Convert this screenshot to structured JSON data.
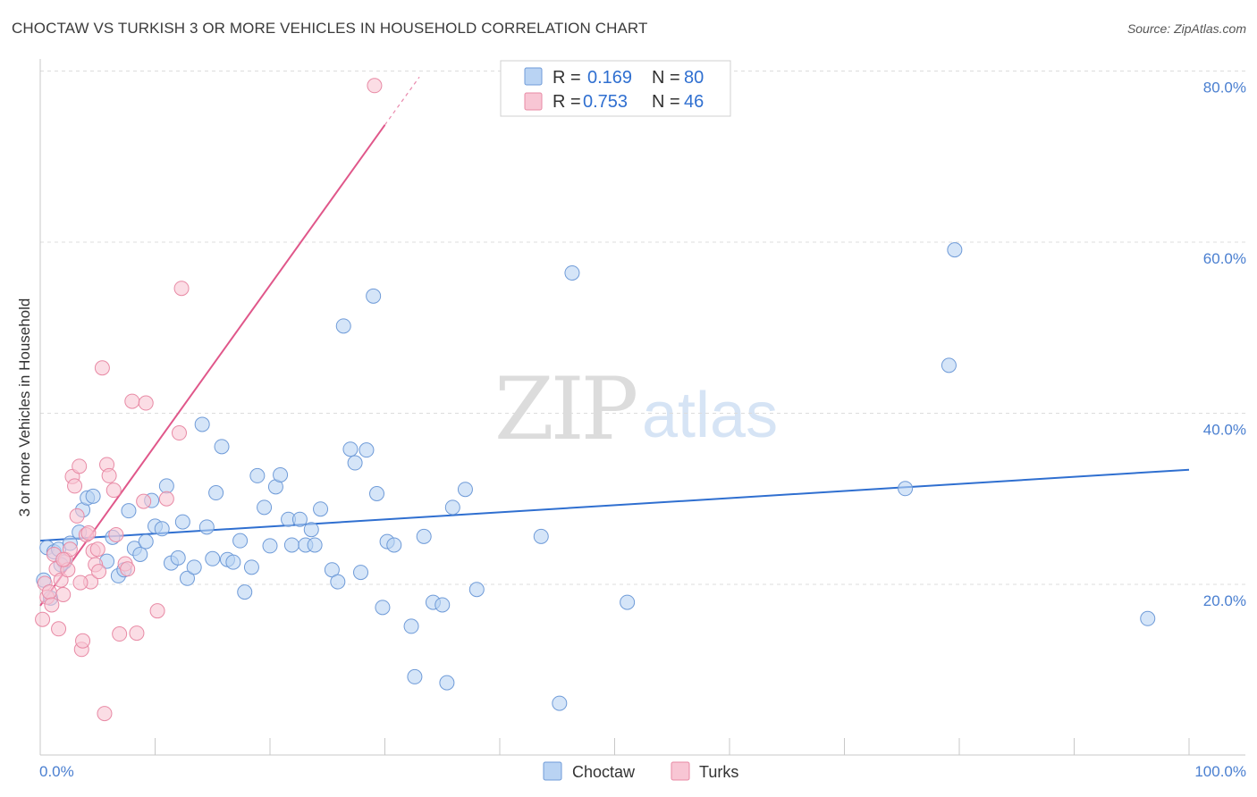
{
  "title": "CHOCTAW VS TURKISH 3 OR MORE VEHICLES IN HOUSEHOLD CORRELATION CHART",
  "source": "Source: ZipAtlas.com",
  "watermark": {
    "zip": "ZIP",
    "atlas": "atlas"
  },
  "colors": {
    "choctaw_fill": "#b9d3f3",
    "choctaw_stroke": "#6f9bd8",
    "choctaw_line": "#2f6fd0",
    "turks_fill": "#f8c6d4",
    "turks_stroke": "#e88aa5",
    "turks_line": "#e0578a",
    "grid": "#dcdcdc",
    "tick_text": "#4a7fd0"
  },
  "legend": {
    "rows": [
      {
        "r_label": "R =",
        "r_value": "0.169",
        "n_label": "N =",
        "n_value": "80"
      },
      {
        "r_label": "R =",
        "r_value": "0.753",
        "n_label": "N =",
        "n_value": "46"
      }
    ]
  },
  "bottom_legend": [
    "Choctaw",
    "Turks"
  ],
  "chart_data": {
    "type": "scatter",
    "title": "CHOCTAW VS TURKISH 3 OR MORE VEHICLES IN HOUSEHOLD CORRELATION CHART",
    "xlabel": "",
    "ylabel": "3 or more Vehicles in Household",
    "xlim": [
      0,
      100
    ],
    "ylim": [
      0,
      82
    ],
    "x_tick_labels": [
      "0.0%",
      "100.0%"
    ],
    "y_ticks": [
      20,
      40,
      60,
      80
    ],
    "y_tick_labels": [
      "20.0%",
      "40.0%",
      "60.0%",
      "80.0%"
    ],
    "grid": true,
    "series": [
      {
        "name": "Choctaw",
        "R": 0.169,
        "N": 80,
        "trend": {
          "x": [
            0,
            100
          ],
          "y": [
            25.1,
            33.4
          ]
        },
        "points": [
          [
            0.6,
            24.3
          ],
          [
            1.2,
            23.8
          ],
          [
            1.6,
            24.1
          ],
          [
            2.1,
            22.6
          ],
          [
            2.6,
            24.8
          ],
          [
            3.4,
            26.1
          ],
          [
            3.7,
            28.7
          ],
          [
            4.1,
            30.1
          ],
          [
            4.6,
            30.3
          ],
          [
            6.3,
            25.5
          ],
          [
            5.8,
            22.7
          ],
          [
            6.8,
            21.0
          ],
          [
            7.3,
            21.7
          ],
          [
            7.7,
            28.6
          ],
          [
            8.2,
            24.2
          ],
          [
            8.7,
            23.5
          ],
          [
            9.2,
            25.0
          ],
          [
            9.7,
            29.8
          ],
          [
            10.0,
            26.8
          ],
          [
            10.6,
            26.5
          ],
          [
            11.0,
            31.5
          ],
          [
            11.4,
            22.5
          ],
          [
            12.0,
            23.1
          ],
          [
            12.4,
            27.3
          ],
          [
            12.8,
            20.7
          ],
          [
            13.4,
            22.0
          ],
          [
            14.1,
            38.7
          ],
          [
            14.5,
            26.7
          ],
          [
            15.0,
            23.0
          ],
          [
            15.3,
            30.7
          ],
          [
            15.8,
            36.1
          ],
          [
            16.3,
            22.9
          ],
          [
            16.8,
            22.6
          ],
          [
            17.4,
            25.1
          ],
          [
            17.8,
            19.1
          ],
          [
            18.4,
            22.0
          ],
          [
            18.9,
            32.7
          ],
          [
            19.5,
            29.0
          ],
          [
            20.0,
            24.5
          ],
          [
            20.5,
            31.4
          ],
          [
            20.9,
            32.8
          ],
          [
            21.6,
            27.6
          ],
          [
            21.9,
            24.6
          ],
          [
            22.6,
            27.6
          ],
          [
            23.1,
            24.6
          ],
          [
            23.6,
            26.4
          ],
          [
            23.9,
            24.6
          ],
          [
            24.4,
            28.8
          ],
          [
            25.4,
            21.7
          ],
          [
            25.9,
            20.3
          ],
          [
            26.4,
            50.2
          ],
          [
            27.0,
            35.8
          ],
          [
            27.4,
            34.2
          ],
          [
            27.9,
            21.4
          ],
          [
            28.4,
            35.7
          ],
          [
            29.0,
            53.7
          ],
          [
            29.3,
            30.6
          ],
          [
            29.8,
            17.3
          ],
          [
            30.2,
            25.0
          ],
          [
            30.8,
            24.6
          ],
          [
            32.3,
            15.1
          ],
          [
            32.6,
            9.2
          ],
          [
            33.4,
            25.6
          ],
          [
            34.2,
            17.9
          ],
          [
            35.0,
            17.6
          ],
          [
            35.4,
            8.5
          ],
          [
            35.9,
            29.0
          ],
          [
            37.0,
            31.1
          ],
          [
            38.0,
            19.4
          ],
          [
            43.6,
            25.6
          ],
          [
            45.2,
            6.1
          ],
          [
            46.3,
            56.4
          ],
          [
            51.1,
            17.9
          ],
          [
            75.3,
            31.2
          ],
          [
            79.1,
            45.6
          ],
          [
            79.6,
            59.1
          ],
          [
            96.4,
            16.0
          ],
          [
            0.3,
            20.5
          ],
          [
            0.9,
            18.4
          ],
          [
            1.8,
            22.3
          ]
        ]
      },
      {
        "name": "Turks",
        "R": 0.753,
        "N": 46,
        "trend": {
          "x": [
            0,
            30
          ],
          "y": [
            17.5,
            73.7
          ],
          "dashed_to": {
            "x": 33,
            "y": 79.3
          }
        },
        "points": [
          [
            0.2,
            15.9
          ],
          [
            0.4,
            20.1
          ],
          [
            0.6,
            18.5
          ],
          [
            0.8,
            19.1
          ],
          [
            1.0,
            17.6
          ],
          [
            1.2,
            23.5
          ],
          [
            1.4,
            21.8
          ],
          [
            1.6,
            14.8
          ],
          [
            1.8,
            20.5
          ],
          [
            2.0,
            18.8
          ],
          [
            2.2,
            22.9
          ],
          [
            2.4,
            21.7
          ],
          [
            2.6,
            24.1
          ],
          [
            2.8,
            32.6
          ],
          [
            3.0,
            31.5
          ],
          [
            3.2,
            28.0
          ],
          [
            3.4,
            33.8
          ],
          [
            3.6,
            12.4
          ],
          [
            3.7,
            13.4
          ],
          [
            4.0,
            25.8
          ],
          [
            4.2,
            26.0
          ],
          [
            4.4,
            20.3
          ],
          [
            4.6,
            23.9
          ],
          [
            4.8,
            22.3
          ],
          [
            5.0,
            24.1
          ],
          [
            5.1,
            21.5
          ],
          [
            5.4,
            45.3
          ],
          [
            5.6,
            4.9
          ],
          [
            5.8,
            34.0
          ],
          [
            6.0,
            32.7
          ],
          [
            6.4,
            31.0
          ],
          [
            6.6,
            25.8
          ],
          [
            6.9,
            14.2
          ],
          [
            7.4,
            22.4
          ],
          [
            7.6,
            21.8
          ],
          [
            8.0,
            41.4
          ],
          [
            8.4,
            14.3
          ],
          [
            9.0,
            29.7
          ],
          [
            9.2,
            41.2
          ],
          [
            10.2,
            16.9
          ],
          [
            11.0,
            30.0
          ],
          [
            12.1,
            37.7
          ],
          [
            12.3,
            54.6
          ],
          [
            29.1,
            78.3
          ],
          [
            2.0,
            22.9
          ],
          [
            3.5,
            20.2
          ]
        ]
      }
    ]
  }
}
